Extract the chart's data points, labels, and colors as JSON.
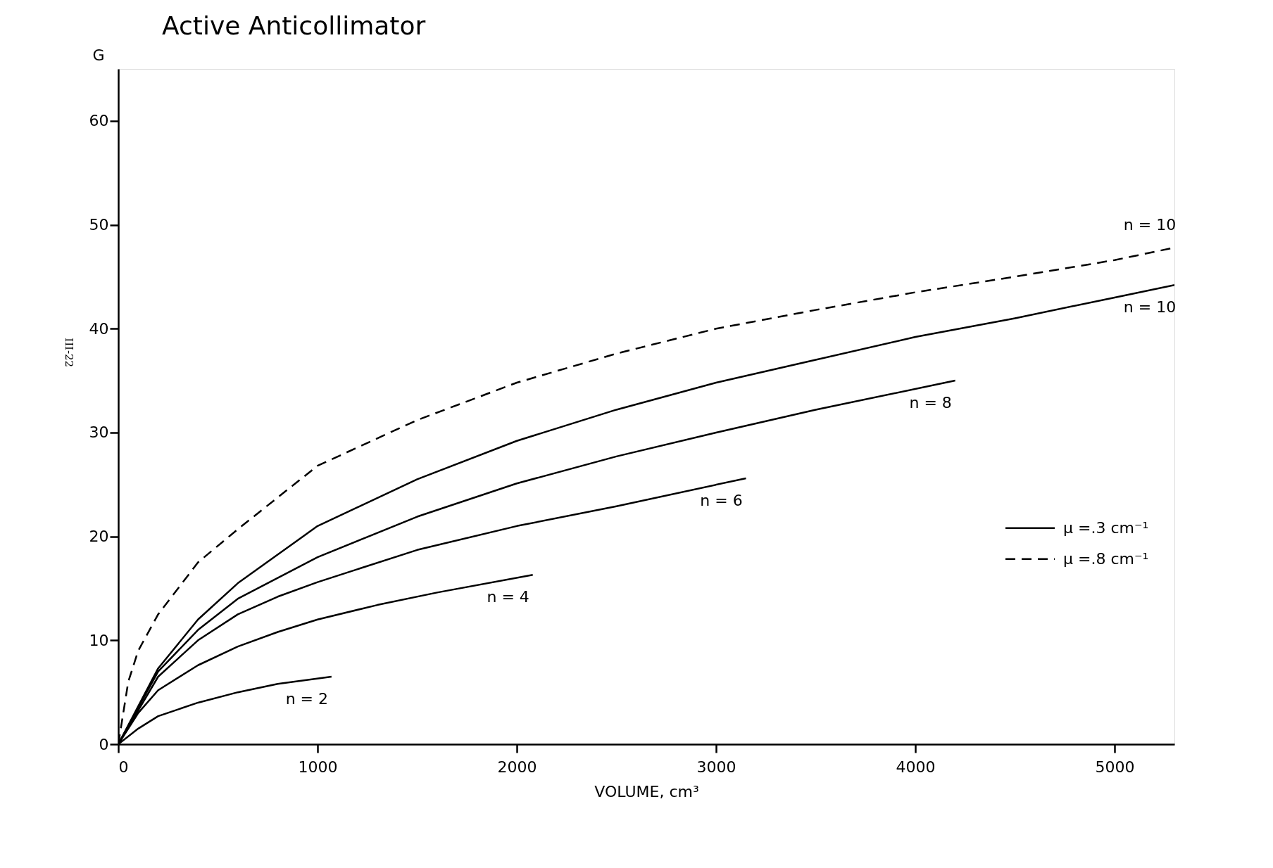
{
  "chart_data": {
    "type": "line",
    "title": "Active Anticollimator",
    "xlabel": "VOLUME, cm³",
    "ylabel": "G",
    "xlim": [
      0,
      5300
    ],
    "ylim": [
      0,
      65
    ],
    "xticks": [
      0,
      1000,
      2000,
      3000,
      4000,
      5000
    ],
    "yticks": [
      0,
      10,
      20,
      30,
      40,
      50,
      60
    ],
    "grid": false,
    "legend": "right",
    "marker": "none",
    "series": [
      {
        "name": "n = 2",
        "color": "#000000",
        "line_style": "solid",
        "x": [
          0,
          100,
          200,
          400,
          600,
          800,
          1070
        ],
        "values": [
          0,
          1.5,
          2.7,
          4.0,
          5.0,
          5.8,
          6.5
        ]
      },
      {
        "name": "n = 4",
        "color": "#000000",
        "line_style": "solid",
        "x": [
          0,
          100,
          200,
          400,
          600,
          800,
          1000,
          1300,
          1600,
          2080
        ],
        "values": [
          0,
          3,
          5.2,
          7.6,
          9.4,
          10.8,
          12.0,
          13.4,
          14.6,
          16.3
        ]
      },
      {
        "name": "n = 6",
        "color": "#000000",
        "line_style": "solid",
        "x": [
          0,
          200,
          400,
          600,
          800,
          1000,
          1500,
          2000,
          2500,
          3150
        ],
        "values": [
          0,
          6.5,
          10,
          12.5,
          14.2,
          15.6,
          18.7,
          21.0,
          22.9,
          25.6
        ]
      },
      {
        "name": "n = 8",
        "color": "#000000",
        "line_style": "solid",
        "x": [
          0,
          200,
          400,
          600,
          1000,
          1500,
          2000,
          2500,
          3000,
          3500,
          4200
        ],
        "values": [
          0,
          7,
          11,
          14,
          18,
          21.9,
          25.1,
          27.7,
          30,
          32.2,
          35
        ]
      },
      {
        "name": "n = 10",
        "color": "#000000",
        "line_style": "solid",
        "x": [
          0,
          200,
          400,
          600,
          1000,
          1500,
          2000,
          2500,
          3000,
          3500,
          4000,
          4500,
          5000,
          5300
        ],
        "values": [
          0,
          7.3,
          12,
          15.5,
          21,
          25.5,
          29.2,
          32.2,
          34.8,
          37,
          39.2,
          41,
          43,
          44.2
        ]
      },
      {
        "name": "n = 10",
        "color": "#000000",
        "line_style": "dashed",
        "x": [
          0,
          50,
          100,
          200,
          400,
          600,
          1000,
          1500,
          2000,
          2500,
          3000,
          3500,
          4000,
          4500,
          5000,
          5300
        ],
        "values": [
          0,
          6,
          9,
          12.5,
          17.5,
          20.7,
          26.8,
          31.2,
          34.8,
          37.6,
          40,
          41.8,
          43.5,
          45,
          46.6,
          47.8
        ]
      }
    ],
    "annotations": [
      "μ =.3 cm⁻¹",
      "μ =.8 cm⁻¹",
      "III-22"
    ]
  }
}
